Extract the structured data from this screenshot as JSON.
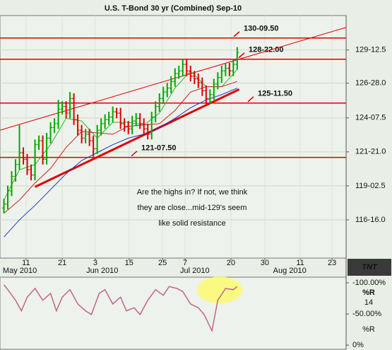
{
  "chart_data": [
    {
      "type": "ohlc",
      "title": "U.S. T-Bond 30 yr (Combined) Sep-10",
      "x": [
        1,
        2,
        3,
        4,
        5,
        6,
        7,
        8,
        9,
        10,
        11,
        12,
        13,
        14,
        15,
        16,
        17,
        18,
        19,
        20,
        21,
        22,
        23,
        24,
        25,
        26,
        27,
        28,
        29,
        30,
        31,
        32,
        33,
        34,
        35,
        36,
        37,
        38,
        39,
        40,
        41,
        42,
        43,
        44,
        45,
        46,
        47,
        48,
        49,
        50,
        51,
        52,
        53,
        54,
        55,
        56,
        57,
        58,
        59,
        60,
        61
      ],
      "open": [
        117.4,
        117.7,
        118.7,
        119.8,
        120.7,
        121.6,
        121.1,
        120.3,
        119.9,
        122.2,
        122.5,
        121.1,
        122.7,
        123.5,
        123.8,
        124.9,
        125.1,
        124.6,
        125.7,
        124.1,
        123.3,
        122.7,
        123.0,
        122.5,
        121.9,
        123.3,
        123.8,
        124.1,
        124.3,
        124.7,
        124.6,
        123.8,
        123.6,
        123.4,
        124.0,
        124.2,
        123.8,
        123.4,
        123.0,
        124.3,
        125.1,
        125.7,
        126.2,
        126.5,
        127.0,
        127.6,
        127.8,
        128.3,
        127.8,
        127.4,
        127.2,
        126.9,
        126.3,
        125.7,
        126.0,
        126.8,
        127.3,
        127.8,
        128.0,
        127.8,
        128.3
      ],
      "high": [
        118.1,
        119.1,
        120.2,
        121.1,
        123.7,
        122.0,
        121.5,
        120.7,
        122.6,
        122.9,
        122.9,
        123.1,
        123.9,
        124.2,
        125.6,
        125.5,
        125.5,
        126.2,
        126.1,
        124.5,
        123.7,
        123.4,
        123.4,
        122.9,
        123.7,
        124.2,
        124.5,
        124.7,
        125.1,
        125.0,
        125.0,
        124.2,
        124.0,
        124.4,
        124.6,
        124.6,
        124.2,
        123.8,
        124.7,
        125.5,
        126.1,
        126.6,
        126.9,
        127.4,
        128.0,
        128.2,
        128.7,
        128.7,
        128.2,
        127.8,
        127.6,
        127.3,
        126.7,
        126.4,
        127.2,
        127.7,
        128.2,
        128.4,
        128.4,
        128.7,
        129.6
      ],
      "low": [
        117.0,
        117.3,
        118.3,
        119.4,
        120.3,
        120.7,
        119.9,
        119.5,
        119.5,
        121.8,
        120.7,
        120.7,
        122.3,
        123.1,
        123.4,
        124.5,
        124.2,
        124.2,
        123.7,
        122.9,
        122.3,
        122.3,
        122.1,
        121.3,
        121.5,
        122.9,
        123.4,
        123.7,
        123.9,
        124.2,
        123.4,
        123.2,
        123.0,
        123.0,
        123.6,
        123.4,
        123.0,
        122.6,
        122.6,
        123.9,
        124.7,
        125.3,
        125.8,
        126.1,
        126.6,
        127.2,
        127.4,
        127.4,
        127.0,
        126.8,
        126.5,
        125.9,
        125.3,
        125.3,
        125.6,
        126.4,
        126.9,
        127.4,
        127.4,
        127.4,
        127.9
      ],
      "close": [
        117.7,
        118.7,
        119.8,
        120.7,
        121.6,
        121.1,
        120.3,
        119.9,
        122.2,
        122.5,
        121.1,
        122.7,
        123.5,
        123.8,
        124.9,
        125.1,
        124.6,
        125.7,
        124.1,
        123.3,
        122.7,
        123.0,
        122.5,
        121.9,
        123.3,
        123.8,
        124.1,
        124.3,
        124.7,
        124.6,
        123.8,
        123.6,
        123.4,
        124.0,
        124.2,
        123.8,
        123.4,
        123.0,
        124.3,
        125.1,
        125.7,
        126.2,
        126.5,
        127.0,
        127.6,
        127.8,
        128.3,
        127.8,
        127.4,
        127.2,
        126.9,
        126.3,
        125.7,
        126.0,
        126.8,
        127.3,
        127.8,
        128.0,
        127.8,
        128.3,
        129.2
      ],
      "up_color": "#00a800",
      "down_color": "#dd0000",
      "ylim": [
        113.6,
        132.0
      ],
      "yticks": [
        {
          "value": 129.390625,
          "label": "129-12.5"
        },
        {
          "value": 126.875,
          "label": "126-28.0"
        },
        {
          "value": 124.234375,
          "label": "124-07.5"
        },
        {
          "value": 121.65625,
          "label": "121-21.0"
        },
        {
          "value": 119.078125,
          "label": "119-02.5"
        },
        {
          "value": 116.5,
          "label": "116-16.0"
        }
      ],
      "xlim": [
        0,
        89
      ],
      "xticks": [
        {
          "value": 6.7,
          "label": "11"
        },
        {
          "value": 16.0,
          "label": "21"
        },
        {
          "value": 24.5,
          "label": "3"
        },
        {
          "value": 33.2,
          "label": "15"
        },
        {
          "value": 41.8,
          "label": "25"
        },
        {
          "value": 47.6,
          "label": "7"
        },
        {
          "value": 59.4,
          "label": "20"
        },
        {
          "value": 68.1,
          "label": "30"
        },
        {
          "value": 77.2,
          "label": "11"
        },
        {
          "value": 85.4,
          "label": "23"
        }
      ],
      "month_ticks": [
        {
          "value": 5.1,
          "label": "May 2010"
        },
        {
          "value": 26.3,
          "label": "Jun 2010"
        },
        {
          "value": 50.1,
          "label": "Jul 2010"
        },
        {
          "value": 74.5,
          "label": "Aug 2010"
        }
      ],
      "grid": true,
      "moving_averages": [
        {
          "color": "#22bb22",
          "x": [
            1,
            5,
            9,
            13,
            17,
            21,
            25,
            29,
            33,
            37,
            41,
            45,
            49,
            53,
            57,
            61
          ],
          "values": [
            118.0,
            120.3,
            120.7,
            122.2,
            124.2,
            124.0,
            122.7,
            123.9,
            123.9,
            123.7,
            124.6,
            126.5,
            127.8,
            126.6,
            126.6,
            127.9
          ]
        },
        {
          "color": "#cc2222",
          "x": [
            1,
            5,
            9,
            13,
            17,
            21,
            25,
            29,
            33,
            37,
            41,
            45,
            49,
            53,
            57,
            61
          ],
          "values": [
            117.0,
            118.0,
            119.3,
            120.4,
            122.0,
            123.2,
            123.1,
            123.0,
            123.6,
            123.7,
            123.8,
            124.8,
            126.2,
            126.6,
            126.6,
            127.0
          ]
        },
        {
          "color": "#2233cc",
          "x": [
            1,
            5,
            9,
            13,
            17,
            21,
            25,
            29,
            33,
            37,
            41,
            45,
            49,
            53,
            57,
            61
          ],
          "values": [
            115.2,
            116.5,
            117.6,
            118.8,
            120.0,
            121.0,
            121.6,
            122.2,
            122.7,
            123.0,
            123.5,
            124.2,
            125.0,
            125.6,
            126.0,
            126.5
          ]
        }
      ],
      "trend_lines": [
        {
          "color": "#dd0000",
          "width": 1,
          "x": [
            0,
            89
          ],
          "values": [
            123.3,
            131.1
          ]
        },
        {
          "color": "#dd0000",
          "width": 3,
          "x": [
            9,
            61.5
          ],
          "values": [
            119.0,
            126.4
          ]
        }
      ],
      "levels": [
        {
          "value": 130.296875,
          "label": "130-09.50"
        },
        {
          "value": 128.6875,
          "label": "128-22.00"
        },
        {
          "value": 125.359375,
          "label": "125-11.50"
        },
        {
          "value": 121.234375,
          "label": "121-07.50"
        }
      ],
      "level_color": "#dd0000",
      "annotation": [
        "Are the highs in?  If not, we think",
        "they are close...mid-129's seem",
        "like solid resistance"
      ],
      "logo": "TNT"
    },
    {
      "type": "line",
      "title": "%R",
      "period": 14,
      "x": [
        1,
        2,
        4,
        5.5,
        7,
        9,
        11,
        13,
        14.5,
        16,
        18,
        20,
        22,
        23.5,
        25.5,
        27,
        29,
        31,
        32.5,
        34.5,
        36,
        38,
        40,
        42,
        43.5,
        45.5,
        47,
        49,
        51,
        52.5,
        54.5,
        56,
        58,
        60,
        61
      ],
      "series": [
        {
          "name": "%R",
          "color": "#c0648a",
          "values": [
            -97,
            -89,
            -72,
            -55,
            -77,
            -91,
            -72,
            -83,
            -55,
            -77,
            -89,
            -66,
            -55,
            -49,
            -83,
            -89,
            -66,
            -77,
            -55,
            -60,
            -49,
            -72,
            -89,
            -80,
            -94,
            -91,
            -86,
            -66,
            -60,
            -49,
            -23,
            -72,
            -91,
            -89,
            -94
          ]
        }
      ],
      "ylim": [
        4.5,
        -106.8
      ],
      "yticks": [
        {
          "value": -100,
          "label": "-100.00%"
        },
        {
          "value": -50,
          "label": "-50.00%"
        },
        {
          "value": 0,
          "label": "0%"
        }
      ],
      "xlim": [
        0,
        89
      ]
    }
  ]
}
